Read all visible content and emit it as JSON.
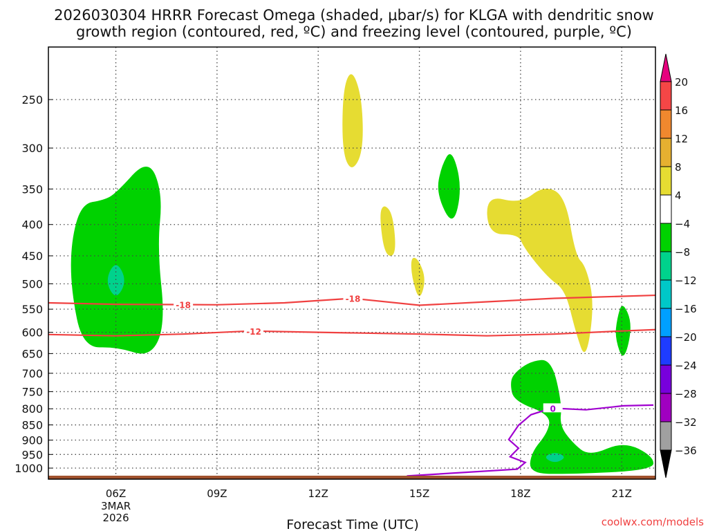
{
  "chart_data": {
    "type": "heatmap",
    "title_line1": "2026030304 HRRR Forecast Omega (shaded, μbar/s) for KLGA with dendritic snow",
    "title_line2": "growth region (contoured, red, ºC) and freezing level (contoured, purple, ºC)",
    "xlabel": "Forecast Time (UTC)",
    "ylabel": "",
    "credit": "coolwx.com/models",
    "xlim_hours": [
      4,
      22
    ],
    "ylim_hPa": [
      205,
      1042
    ],
    "y_scale": "log",
    "grid": true,
    "x_ticks": [
      {
        "hour": 6,
        "label": "06Z",
        "sub": [
          "3MAR",
          "2026"
        ]
      },
      {
        "hour": 9,
        "label": "09Z"
      },
      {
        "hour": 12,
        "label": "12Z"
      },
      {
        "hour": 15,
        "label": "15Z"
      },
      {
        "hour": 18,
        "label": "18Z"
      },
      {
        "hour": 21,
        "label": "21Z"
      }
    ],
    "y_ticks": [
      250,
      300,
      350,
      400,
      450,
      500,
      550,
      600,
      650,
      700,
      750,
      800,
      850,
      900,
      950,
      1000
    ],
    "colorbar": {
      "labels": [
        "20",
        "16",
        "12",
        "8",
        "4",
        "-4",
        "-8",
        "-12",
        "-16",
        "-20",
        "-24",
        "-28",
        "-32",
        "-36"
      ],
      "colors": [
        "#f54646",
        "#f0882e",
        "#e6b030",
        "#e6dc32",
        "#ffffff",
        "#00d200",
        "#00d28c",
        "#00c8c8",
        "#00a0ff",
        "#1e3cff",
        "#7800dc",
        "#a000c0",
        "#a0a0a0"
      ],
      "over_color": "#e6007e",
      "under_color": "#000000"
    },
    "shaded_regions": [
      {
        "range": "-8 to -4",
        "color": "#00d200",
        "points": [
          [
            4.98,
            370
          ],
          [
            5.63,
            365
          ],
          [
            6.0,
            356
          ],
          [
            6.96,
            311
          ],
          [
            7.39,
            356
          ],
          [
            7.23,
            437
          ],
          [
            7.47,
            583
          ],
          [
            7.02,
            660
          ],
          [
            6.04,
            634
          ],
          [
            5.02,
            636
          ],
          [
            4.67,
            511
          ],
          [
            4.67,
            427
          ]
        ]
      },
      {
        "range": "-12 to -8",
        "color": "#00d28c",
        "points": [
          [
            6.0,
            457
          ],
          [
            6.33,
            494
          ],
          [
            6.0,
            532
          ],
          [
            5.68,
            494
          ]
        ]
      },
      {
        "range": "4 to 8",
        "color": "#e6dc32",
        "points": [
          [
            12.99,
            222
          ],
          [
            13.3,
            248
          ],
          [
            13.34,
            304
          ],
          [
            12.99,
            329
          ],
          [
            12.71,
            304
          ],
          [
            12.73,
            241
          ]
        ]
      },
      {
        "range": "4 to 8",
        "color": "#e6dc32",
        "points": [
          [
            13.95,
            370
          ],
          [
            14.22,
            385
          ],
          [
            14.32,
            450
          ],
          [
            13.97,
            450
          ],
          [
            13.81,
            385
          ]
        ]
      },
      {
        "range": "4 to 8",
        "color": "#e6dc32",
        "points": [
          [
            14.75,
            452
          ],
          [
            14.97,
            455
          ],
          [
            15.2,
            492
          ],
          [
            15.0,
            535
          ],
          [
            14.77,
            487
          ]
        ]
      },
      {
        "range": "-8 to -4",
        "color": "#00d200",
        "points": [
          [
            15.96,
            300
          ],
          [
            16.27,
            348
          ],
          [
            16.0,
            405
          ],
          [
            15.5,
            356
          ],
          [
            15.65,
            321
          ]
        ]
      },
      {
        "range": "4 to 8",
        "color": "#e6dc32",
        "points": [
          [
            16.98,
            358
          ],
          [
            18.0,
            370
          ],
          [
            18.71,
            345
          ],
          [
            19.33,
            360
          ],
          [
            19.63,
            450
          ],
          [
            19.94,
            468
          ],
          [
            20.19,
            539
          ],
          [
            19.94,
            671
          ],
          [
            19.63,
            599
          ],
          [
            19.33,
            512
          ],
          [
            18.82,
            489
          ],
          [
            18.1,
            437
          ],
          [
            17.94,
            415
          ],
          [
            17.04,
            415
          ]
        ]
      },
      {
        "range": "-8 to -4",
        "color": "#00d200",
        "points": [
          [
            21.02,
            533
          ],
          [
            21.33,
            583
          ],
          [
            21.06,
            674
          ],
          [
            20.8,
            613
          ],
          [
            20.86,
            570
          ]
        ]
      },
      {
        "range": "-8 to -4",
        "color": "#00d200",
        "points": [
          [
            17.8,
            700
          ],
          [
            18.31,
            668
          ],
          [
            18.92,
            664
          ],
          [
            19.23,
            787
          ],
          [
            19.16,
            851
          ],
          [
            19.53,
            908
          ],
          [
            20.04,
            957
          ],
          [
            21.06,
            904
          ],
          [
            21.94,
            957
          ],
          [
            21.94,
            1008
          ],
          [
            19.33,
            1024
          ],
          [
            18.26,
            1019
          ],
          [
            18.31,
            944
          ],
          [
            18.82,
            873
          ],
          [
            18.88,
            818
          ],
          [
            17.8,
            777
          ],
          [
            17.69,
            728
          ]
        ]
      },
      {
        "range": "-12 to -8",
        "color": "#00d28c",
        "points": [
          [
            18.67,
            960
          ],
          [
            19.02,
            940
          ],
          [
            19.37,
            960
          ],
          [
            19.02,
            983
          ]
        ]
      }
    ],
    "contours": [
      {
        "value": -18,
        "label": "-18",
        "color": "#f04040",
        "points": [
          [
            4,
            537
          ],
          [
            6,
            540
          ],
          [
            9,
            541
          ],
          [
            11,
            537
          ],
          [
            13,
            528
          ],
          [
            15,
            542
          ],
          [
            17,
            535
          ],
          [
            19,
            528
          ],
          [
            20,
            526
          ],
          [
            22,
            522
          ]
        ],
        "label_hours": [
          8.0,
          13.03
        ]
      },
      {
        "value": -12,
        "label": "-12",
        "color": "#f04040",
        "points": [
          [
            4,
            605
          ],
          [
            6,
            608
          ],
          [
            8,
            604
          ],
          [
            10,
            597
          ],
          [
            12,
            600
          ],
          [
            15,
            604
          ],
          [
            17,
            608
          ],
          [
            19,
            604
          ],
          [
            21,
            597
          ],
          [
            22,
            594
          ]
        ],
        "label_hours": [
          10.09
        ]
      },
      {
        "value": 0,
        "label": "0",
        "color": "#a000d0",
        "points": [
          [
            14.63,
            1030
          ],
          [
            17.9,
            1004
          ],
          [
            18.14,
            979
          ],
          [
            17.69,
            958
          ],
          [
            17.94,
            928
          ],
          [
            17.65,
            898
          ],
          [
            17.94,
            851
          ],
          [
            18.31,
            818
          ],
          [
            18.92,
            798
          ],
          [
            19.94,
            803
          ],
          [
            21.06,
            791
          ],
          [
            21.94,
            789
          ]
        ],
        "label_hours": [
          18.96
        ]
      }
    ]
  }
}
